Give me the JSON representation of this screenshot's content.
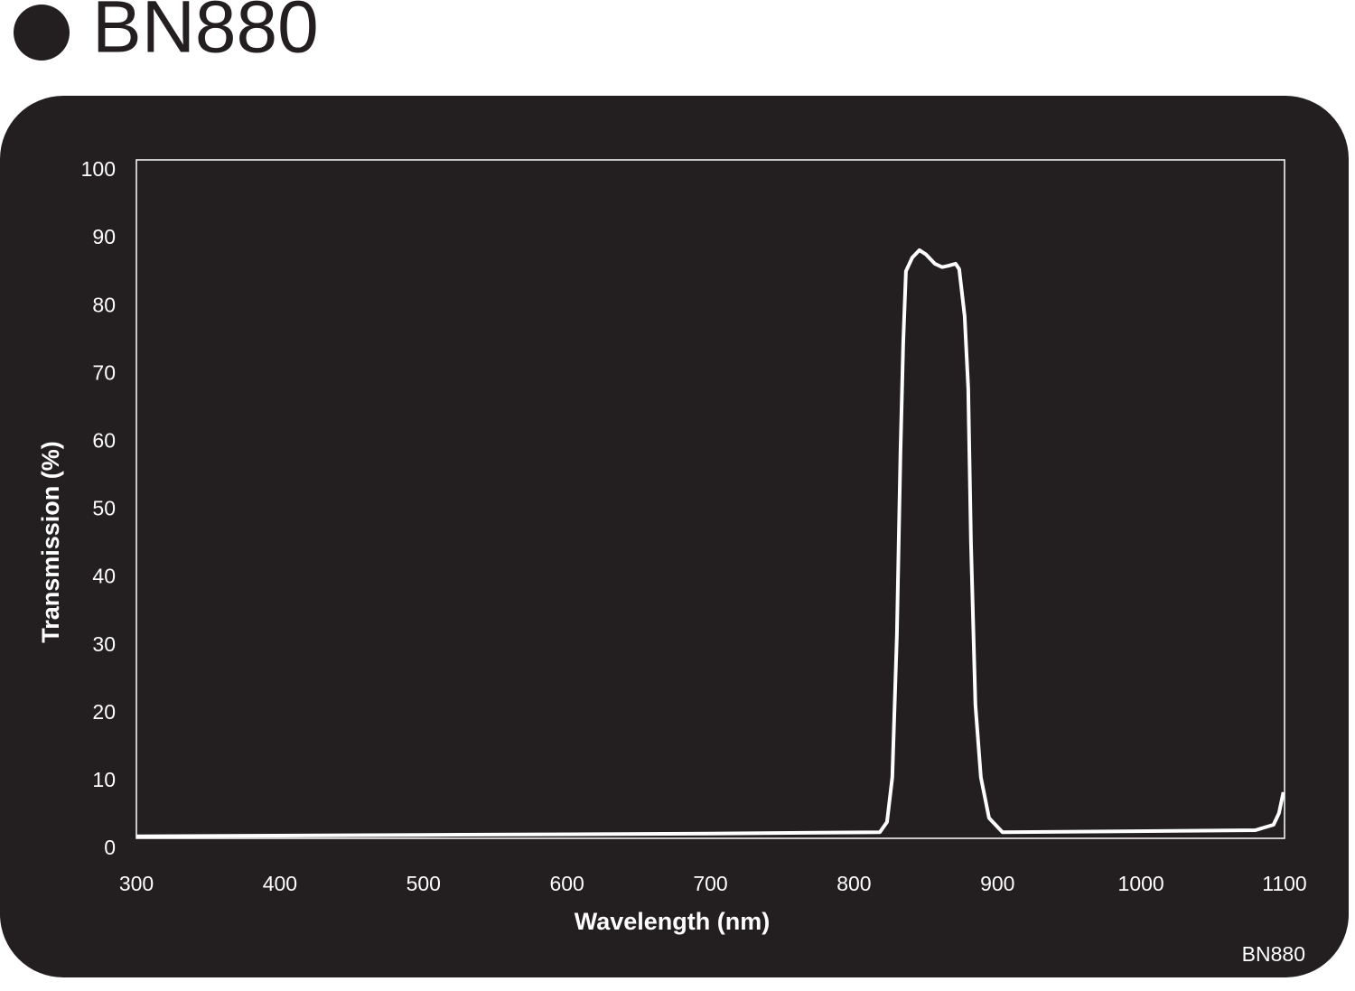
{
  "chart_data": {
    "type": "line",
    "title": "BN880",
    "footnote": "BN880",
    "x_label": "Wavelength (nm)",
    "y_label": "Transmission (%)",
    "xlim": [
      300,
      1100
    ],
    "xticks": [
      300,
      400,
      500,
      600,
      700,
      800,
      900,
      1000,
      1100
    ],
    "ylim": [
      0,
      100
    ],
    "yticks": [
      0,
      10,
      20,
      30,
      40,
      50,
      60,
      70,
      80,
      90,
      100
    ],
    "series": [
      {
        "color": "#ffffff",
        "x": [
          300,
          500,
          700,
          818,
          823,
          826.7,
          829.9,
          832.4,
          834.3,
          836.2,
          840.6,
          845.6,
          850,
          856.3,
          861.4,
          865.8,
          870.8,
          873.3,
          877.1,
          879.6,
          881.5,
          884.6,
          888.4,
          894.1,
          903.5,
          1079.7,
          1092.3,
          1096.1,
          1099.2
        ],
        "values": [
          0.3,
          0.5,
          0.7,
          0.9,
          2.4,
          9,
          30,
          57,
          73,
          83.6,
          85.6,
          86.7,
          86.1,
          84.7,
          84.2,
          84.4,
          84.7,
          83.9,
          77,
          66.3,
          43.7,
          19.7,
          9,
          3,
          0.9,
          1.2,
          2,
          3.7,
          6.8
        ]
      }
    ]
  }
}
